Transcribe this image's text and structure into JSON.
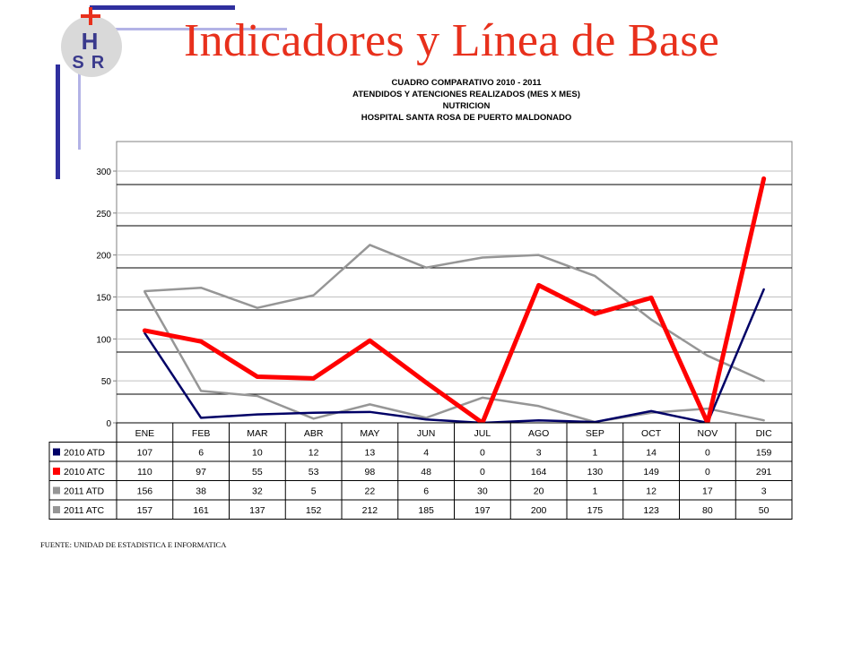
{
  "slide": {
    "title": "Indicadores y Línea de Base",
    "source_note": "FUENTE: UNIDAD DE ESTADISTICA E INFORMATICA"
  },
  "logo": {
    "letters": [
      "H",
      "S",
      "R"
    ],
    "cross_color": "#e8301c",
    "letter_color": "#3a3a8c"
  },
  "colors": {
    "title": "#e8301c",
    "accent_bar_dark": "#2f2f9e",
    "accent_bar_light": "#b3b3e6"
  },
  "chart_data": {
    "type": "line",
    "title_lines": [
      "CUADRO COMPARATIVO 2010 - 2011",
      "ATENDIDOS Y ATENCIONES REALIZADOS (MES X MES)",
      "NUTRICION",
      "HOSPITAL SANTA ROSA DE PUERTO MALDONADO"
    ],
    "categories": [
      "ENE",
      "FEB",
      "MAR",
      "ABR",
      "MAY",
      "JUN",
      "JUL",
      "AGO",
      "SEP",
      "OCT",
      "NOV",
      "DIC"
    ],
    "y_ticks": [
      0,
      50,
      100,
      150,
      200,
      250,
      300
    ],
    "ylim": [
      0,
      300
    ],
    "grid": true,
    "legend": "data-table-left",
    "series": [
      {
        "name": "2010 ATD",
        "color": "#000066",
        "values": [
          107,
          6,
          10,
          12,
          13,
          4,
          0,
          3,
          1,
          14,
          0,
          159
        ]
      },
      {
        "name": "2010 ATC",
        "color": "#ff0000",
        "values": [
          110,
          97,
          55,
          53,
          98,
          48,
          0,
          164,
          130,
          149,
          0,
          291
        ]
      },
      {
        "name": "2011 ATD",
        "color": "#969696",
        "values": [
          156,
          38,
          32,
          5,
          22,
          6,
          30,
          20,
          1,
          12,
          17,
          3
        ]
      },
      {
        "name": "2011 ATC",
        "color": "#969696",
        "values": [
          157,
          161,
          137,
          152,
          212,
          185,
          197,
          200,
          175,
          123,
          80,
          50
        ]
      }
    ]
  }
}
